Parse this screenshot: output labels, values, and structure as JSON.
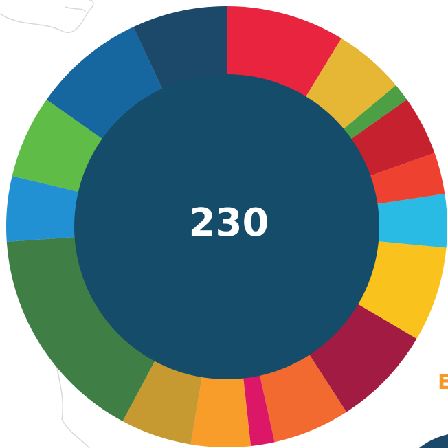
{
  "chart_data": {
    "type": "donut",
    "total": 230,
    "annotation": "E",
    "values": [
      20,
      12,
      3,
      10,
      7,
      9,
      16,
      17,
      13,
      4,
      10,
      12,
      37,
      11,
      14,
      19,
      16
    ],
    "colors": [
      "#e8243f",
      "#e5b735",
      "#4c9f44",
      "#c5212f",
      "#ee4130",
      "#29bbe3",
      "#f9c21c",
      "#a21b42",
      "#f26a30",
      "#dd1767",
      "#f99d2a",
      "#c69a30",
      "#3f7e44",
      "#2291d3",
      "#5fbc47",
      "#1666a0",
      "#1c4869"
    ]
  }
}
